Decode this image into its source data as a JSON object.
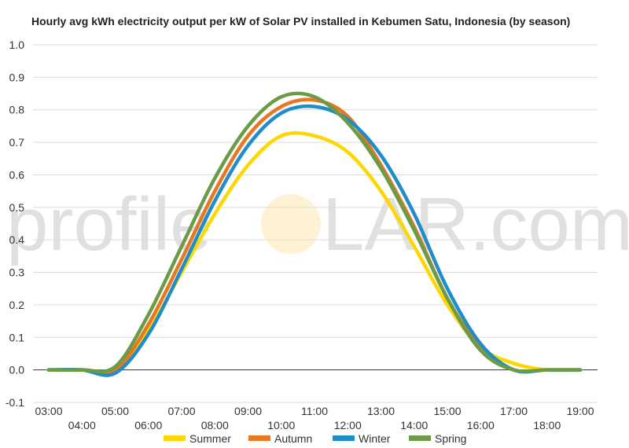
{
  "watermark": {
    "left": "profile",
    "right": "LAR.com"
  },
  "chart_data": {
    "type": "line",
    "title": "Hourly avg kWh electricity output per kW of Solar PV installed in Kebumen Satu, Indonesia (by season)",
    "xlabel": "",
    "ylabel": "",
    "ylim": [
      -0.1,
      1.0
    ],
    "yticks": [
      "1.0",
      "0.9",
      "0.8",
      "0.7",
      "0.6",
      "0.5",
      "0.4",
      "0.3",
      "0.2",
      "0.1",
      "0.0",
      "-0.1"
    ],
    "categories": [
      "03:00",
      "04:00",
      "05:00",
      "06:00",
      "07:00",
      "08:00",
      "09:00",
      "10:00",
      "11:00",
      "12:00",
      "13:00",
      "14:00",
      "15:00",
      "16:00",
      "17:00",
      "18:00",
      "19:00"
    ],
    "grid": true,
    "legend_position": "bottom",
    "series": [
      {
        "name": "Summer",
        "color": "#FFD700",
        "values": [
          0,
          0,
          -0.01,
          0.12,
          0.3,
          0.48,
          0.63,
          0.72,
          0.72,
          0.67,
          0.55,
          0.38,
          0.2,
          0.07,
          0.02,
          0,
          0
        ]
      },
      {
        "name": "Autumn",
        "color": "#E87722",
        "values": [
          0,
          0,
          0,
          0.14,
          0.34,
          0.55,
          0.72,
          0.81,
          0.83,
          0.78,
          0.63,
          0.44,
          0.22,
          0.07,
          0,
          0,
          0
        ]
      },
      {
        "name": "Winter",
        "color": "#1F8DC9",
        "values": [
          0,
          0,
          -0.01,
          0.11,
          0.31,
          0.52,
          0.69,
          0.79,
          0.81,
          0.77,
          0.66,
          0.48,
          0.25,
          0.08,
          0,
          0,
          0
        ]
      },
      {
        "name": "Spring",
        "color": "#6B9B46",
        "values": [
          0,
          0,
          0.01,
          0.17,
          0.38,
          0.59,
          0.75,
          0.84,
          0.84,
          0.76,
          0.62,
          0.43,
          0.22,
          0.06,
          0,
          0,
          0
        ]
      }
    ]
  }
}
